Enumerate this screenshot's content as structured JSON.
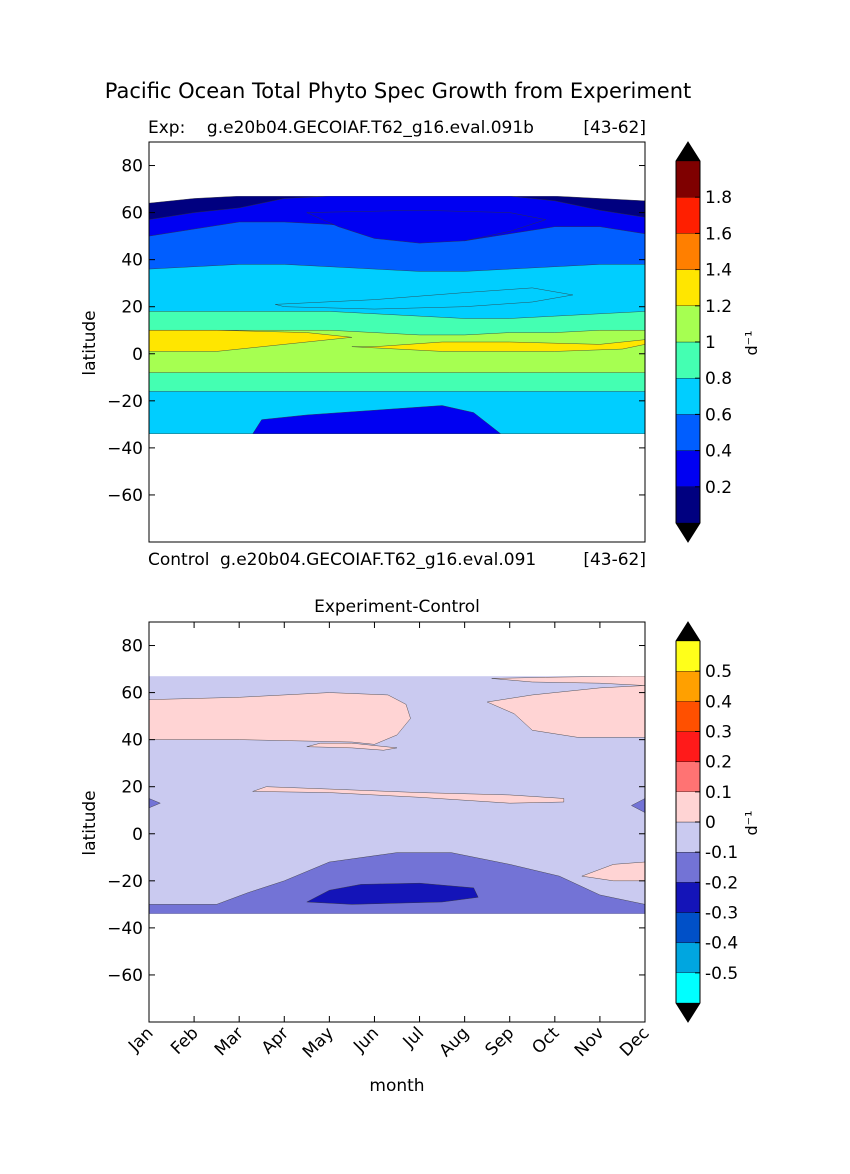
{
  "figure": {
    "suptitle": "Pacific Ocean Total Phyto Spec Growth from Experiment"
  },
  "chart_data": [
    {
      "type": "heatmap",
      "panel": "top",
      "title_left": "Exp:    g.e20b04.GECOIAF.T62_g16.eval.091b",
      "title_right": "[43-62]",
      "title_below_left": "Control",
      "title_below_mid": "g.e20b04.GECOIAF.T62_g16.eval.091",
      "title_below_right": "[43-62]",
      "ylabel": "latitude",
      "ylim": [
        -80,
        90
      ],
      "yticks": [
        80,
        60,
        40,
        20,
        0,
        -20,
        -40,
        -60
      ],
      "xlim": [
        0,
        11
      ],
      "data_lat_range": [
        -34,
        67
      ],
      "colorbar": {
        "label": "d⁻¹",
        "levels": [
          0,
          0.2,
          0.4,
          0.6,
          0.8,
          1.0,
          1.2,
          1.4,
          1.6,
          1.8,
          2.0
        ],
        "colors": [
          "#000080",
          "#0000f2",
          "#005eff",
          "#00ceff",
          "#44ffb2",
          "#a6ff51",
          "#ffe600",
          "#ff7f00",
          "#ff1f00",
          "#7f0000"
        ],
        "tick_labels": [
          "0.2",
          "0.4",
          "0.6",
          "0.8",
          "1",
          "1.2",
          "1.4",
          "1.6",
          "1.8"
        ],
        "extend": "both",
        "extend_color": "#000000"
      },
      "bands": [
        {
          "color": "#00ceff",
          "upper": [
            -16,
            -16,
            -16,
            -16,
            -16,
            -16,
            -16,
            -16,
            -16,
            -16,
            -16,
            -16
          ]
        },
        {
          "color": "#44ffb2",
          "upper": [
            -8,
            -8,
            -8,
            -8,
            -8,
            -8,
            -8,
            -8,
            -8,
            -8,
            -8,
            -8
          ]
        },
        {
          "color": "#a6ff51",
          "upper": [
            10,
            10,
            10,
            10,
            10,
            9,
            8,
            8,
            9,
            9,
            10,
            10
          ]
        },
        {
          "color": "#44ffb2",
          "upper": [
            18,
            18,
            18,
            18,
            18,
            17,
            16,
            15,
            15,
            16,
            17,
            18
          ]
        },
        {
          "color": "#00ceff",
          "upper": [
            36,
            37,
            38,
            38,
            37,
            36,
            35,
            35,
            36,
            37,
            38,
            38
          ]
        },
        {
          "color": "#005eff",
          "upper": [
            50,
            53,
            56,
            56,
            55,
            53,
            50,
            48,
            51,
            54,
            54,
            51
          ]
        },
        {
          "color": "#0000f2",
          "upper": [
            57,
            60,
            62,
            66,
            67,
            67,
            67,
            67,
            67,
            65,
            61,
            58
          ]
        },
        {
          "color": "#000080",
          "upper": [
            64,
            66,
            67,
            67,
            67,
            67,
            67,
            67,
            67,
            67,
            66,
            65
          ]
        }
      ],
      "patches": [
        {
          "color": "#ffe600",
          "points": [
            [
              0,
              1
            ],
            [
              1.5,
              1
            ],
            [
              3.5,
              5
            ],
            [
              4.5,
              7
            ],
            [
              3.5,
              9
            ],
            [
              1.5,
              10
            ],
            [
              0,
              10
            ]
          ]
        },
        {
          "color": "#ffe600",
          "points": [
            [
              4.5,
              3
            ],
            [
              6.5,
              1
            ],
            [
              9,
              1
            ],
            [
              10.5,
              2
            ],
            [
              11,
              4
            ],
            [
              11,
              6
            ],
            [
              10,
              4
            ],
            [
              8,
              5
            ],
            [
              6.5,
              5
            ],
            [
              5,
              3
            ]
          ]
        },
        {
          "color": "#00ceff",
          "points": [
            [
              2.8,
              21
            ],
            [
              5,
              23
            ],
            [
              7,
              26
            ],
            [
              8.5,
              28
            ],
            [
              9.4,
              25
            ],
            [
              8.5,
              22
            ],
            [
              7,
              20
            ],
            [
              5,
              19
            ],
            [
              3,
              20
            ]
          ]
        },
        {
          "color": "#0000f2",
          "points": [
            [
              3.5,
              60
            ],
            [
              4.2,
              54
            ],
            [
              5,
              49
            ],
            [
              6,
              47
            ],
            [
              7,
              48
            ],
            [
              8,
              52
            ],
            [
              8.8,
              57
            ],
            [
              8,
              60
            ],
            [
              6,
              61
            ]
          ]
        },
        {
          "color": "#0000f2",
          "points": [
            [
              2.3,
              -34
            ],
            [
              2.5,
              -28
            ],
            [
              3.5,
              -26
            ],
            [
              5,
              -24
            ],
            [
              6.5,
              -22
            ],
            [
              7.2,
              -25
            ],
            [
              7.8,
              -34
            ]
          ]
        }
      ]
    },
    {
      "type": "heatmap",
      "panel": "bottom",
      "title": "Experiment-Control",
      "xlabel": "month",
      "ylabel": "latitude",
      "ylim": [
        -80,
        90
      ],
      "yticks": [
        80,
        60,
        40,
        20,
        0,
        -20,
        -40,
        -60
      ],
      "xticks": [
        "Jan",
        "Feb",
        "Mar",
        "Apr",
        "May",
        "Jun",
        "Jul",
        "Aug",
        "Sep",
        "Oct",
        "Nov",
        "Dec"
      ],
      "xlim": [
        0,
        11
      ],
      "data_lat_range": [
        -34,
        67
      ],
      "colorbar": {
        "label": "d⁻¹",
        "levels": [
          -0.6,
          -0.5,
          -0.4,
          -0.3,
          -0.2,
          -0.1,
          0,
          0.1,
          0.2,
          0.3,
          0.4,
          0.5,
          0.6
        ],
        "colors": [
          "#00ffff",
          "#00a6e0",
          "#0050c8",
          "#1414b8",
          "#7373d6",
          "#cacaf0",
          "#ffd4d4",
          "#ff7373",
          "#ff1a1a",
          "#ff5000",
          "#ffa000",
          "#ffff1a"
        ],
        "tick_labels": [
          "-0.5",
          "-0.4",
          "-0.3",
          "-0.2",
          "-0.1",
          "0",
          "0.1",
          "0.2",
          "0.3",
          "0.4",
          "0.5"
        ],
        "extend": "both",
        "extend_color": "#000000"
      },
      "base_color": "#cacaf0",
      "patches": [
        {
          "color": "#ffd4d4",
          "points": [
            [
              0,
              40
            ],
            [
              2,
              40
            ],
            [
              4.5,
              39
            ],
            [
              5,
              38
            ],
            [
              5.5,
              42
            ],
            [
              5.8,
              49
            ],
            [
              5.7,
              55
            ],
            [
              5.3,
              59
            ],
            [
              4,
              60
            ],
            [
              2,
              58
            ],
            [
              0,
              57
            ]
          ]
        },
        {
          "color": "#ffd4d4",
          "points": [
            [
              7.5,
              56
            ],
            [
              8.1,
              51
            ],
            [
              8.5,
              44
            ],
            [
              9.5,
              41
            ],
            [
              11,
              41
            ],
            [
              11,
              63
            ],
            [
              10,
              62
            ],
            [
              8.5,
              59
            ]
          ]
        },
        {
          "color": "#ffd4d4",
          "points": [
            [
              2.3,
              18
            ],
            [
              4,
              17.5
            ],
            [
              6,
              15.5
            ],
            [
              8,
              13
            ],
            [
              9.2,
              13.5
            ],
            [
              9.2,
              15
            ],
            [
              8,
              16.5
            ],
            [
              6,
              17.5
            ],
            [
              4,
              19
            ],
            [
              2.6,
              20
            ]
          ]
        },
        {
          "color": "#ffd4d4",
          "points": [
            [
              9.6,
              -18
            ],
            [
              10.3,
              -13
            ],
            [
              11,
              -12
            ],
            [
              11,
              -20
            ],
            [
              10.3,
              -20
            ]
          ]
        },
        {
          "color": "#ffd4d4",
          "points": [
            [
              3.5,
              37
            ],
            [
              4.5,
              36.5
            ],
            [
              5.2,
              35.5
            ],
            [
              5.5,
              36.5
            ],
            [
              4.5,
              38.5
            ],
            [
              3.8,
              38.5
            ]
          ]
        },
        {
          "color": "#ffd4d4",
          "points": [
            [
              7.6,
              66
            ],
            [
              8.8,
              66.5
            ],
            [
              10.5,
              67
            ],
            [
              11,
              67
            ],
            [
              11,
              63
            ],
            [
              10,
              64
            ],
            [
              8.5,
              64.5
            ]
          ]
        },
        {
          "color": "#7373d6",
          "points": [
            [
              0,
              -34
            ],
            [
              0,
              -30
            ],
            [
              1.5,
              -30
            ],
            [
              2.2,
              -25
            ],
            [
              3,
              -20
            ],
            [
              4,
              -12
            ],
            [
              5.5,
              -8
            ],
            [
              6.7,
              -8
            ],
            [
              8,
              -13
            ],
            [
              9.1,
              -18
            ],
            [
              10,
              -26
            ],
            [
              11,
              -30
            ],
            [
              11,
              -34
            ]
          ]
        },
        {
          "color": "#1414b8",
          "points": [
            [
              3.5,
              -29
            ],
            [
              4,
              -24
            ],
            [
              4.7,
              -21.5
            ],
            [
              6,
              -21
            ],
            [
              7.2,
              -23
            ],
            [
              7.3,
              -27
            ],
            [
              6.5,
              -29
            ],
            [
              4.5,
              -30
            ]
          ]
        },
        {
          "color": "#7373d6",
          "points": [
            [
              0,
              11
            ],
            [
              0.25,
              13
            ],
            [
              0,
              15
            ]
          ]
        },
        {
          "color": "#7373d6",
          "points": [
            [
              11,
              9
            ],
            [
              10.7,
              12
            ],
            [
              11,
              15
            ]
          ]
        }
      ]
    }
  ]
}
